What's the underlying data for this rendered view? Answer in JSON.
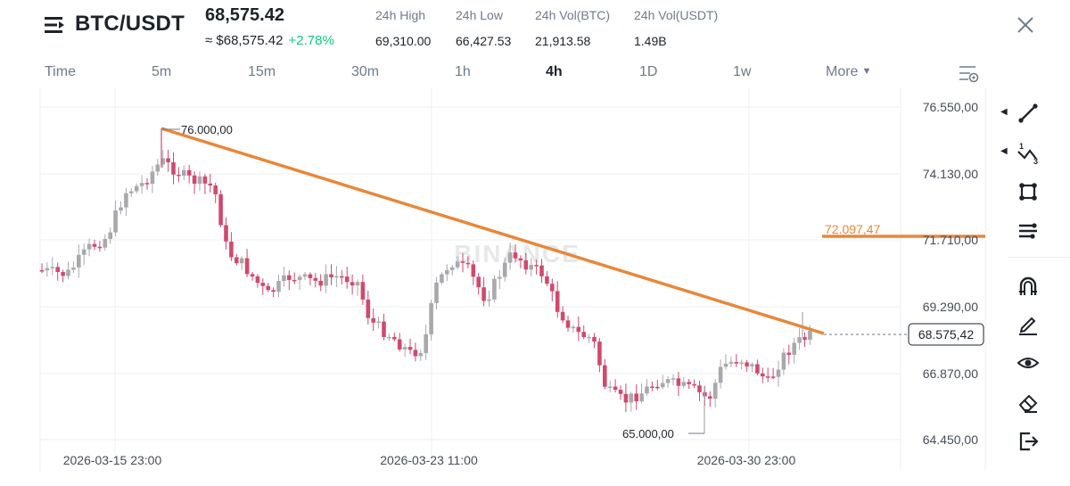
{
  "header": {
    "pair": "BTC/USDT",
    "price": "68,575.42",
    "usd_price": "≈ $68,575.42",
    "change": "+2.78%",
    "stats": [
      {
        "label": "24h High",
        "value": "69,310.00"
      },
      {
        "label": "24h Low",
        "value": "66,427.53"
      },
      {
        "label": "24h Vol(BTC)",
        "value": "21,913.58"
      },
      {
        "label": "24h Vol(USDT)",
        "value": "1.49B"
      }
    ]
  },
  "tabs": [
    "Time",
    "5m",
    "15m",
    "30m",
    "1h",
    "4h",
    "1D",
    "1w",
    "More"
  ],
  "active_tab": "4h",
  "chart": {
    "watermark": "BINANCE",
    "y_ticks": [
      "76.550,00",
      "74.130,00",
      "71.710,00",
      "69.290,00",
      "66.870,00",
      "64.450,00"
    ],
    "x_ticks": [
      "2026-03-15 23:00",
      "2026-03-23 11:00",
      "2026-03-30 23:00"
    ],
    "current_price_label": "68.575,42",
    "high_annotation": "76.000,00",
    "low_annotation": "65.000,00",
    "horizontal_line_label": "72.097,47"
  },
  "colors": {
    "up": "#a9a9ad",
    "down": "#d04a6e",
    "trendline": "#e8873a",
    "change_positive": "#0ecb81"
  },
  "toolbar": [
    "trend-line-icon",
    "fibonacci-icon",
    "shape-icon",
    "indicator-icon",
    "magnet-icon",
    "pencil-icon",
    "eye-icon",
    "eraser-icon",
    "exit-icon"
  ]
}
